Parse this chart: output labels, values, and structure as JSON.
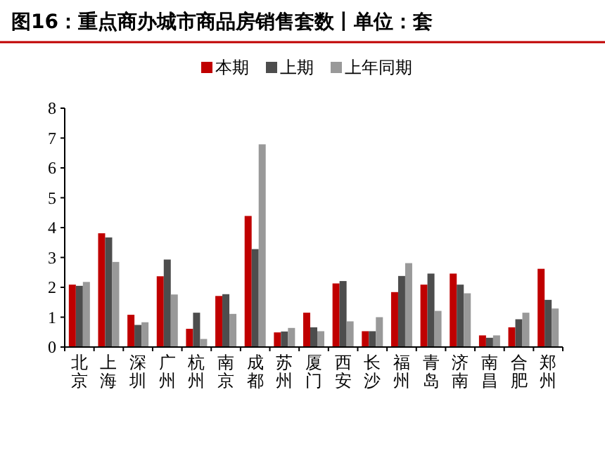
{
  "chart_data": {
    "type": "bar",
    "title": "图16：重点商办城市商品房销售套数丨单位：套",
    "categories": [
      "北京",
      "上海",
      "深圳",
      "广州",
      "杭州",
      "南京",
      "成都",
      "苏州",
      "厦门",
      "西安",
      "长沙",
      "福州",
      "青岛",
      "济南",
      "南昌",
      "合肥",
      "郑州"
    ],
    "series": [
      {
        "name": "本期",
        "color": "#c00000",
        "values": [
          2.09,
          3.81,
          1.08,
          2.37,
          0.61,
          1.71,
          4.39,
          0.49,
          1.15,
          2.13,
          0.53,
          1.84,
          2.09,
          2.46,
          0.39,
          0.66,
          2.62
        ]
      },
      {
        "name": "上期",
        "color": "#4d4d4d",
        "values": [
          2.05,
          3.67,
          0.74,
          2.93,
          1.15,
          1.77,
          3.28,
          0.52,
          0.66,
          2.21,
          0.53,
          2.38,
          2.46,
          2.09,
          0.31,
          0.93,
          1.58
        ]
      },
      {
        "name": "上年同期",
        "color": "#999999",
        "values": [
          2.18,
          2.85,
          0.83,
          1.76,
          0.27,
          1.11,
          6.79,
          0.64,
          0.53,
          0.86,
          1.0,
          2.81,
          1.21,
          1.8,
          0.39,
          1.15,
          1.29
        ]
      }
    ],
    "ylim": [
      0,
      8
    ],
    "yticks": [
      0,
      1,
      2,
      3,
      4,
      5,
      6,
      7,
      8
    ],
    "grid": false,
    "legend": "top right"
  }
}
